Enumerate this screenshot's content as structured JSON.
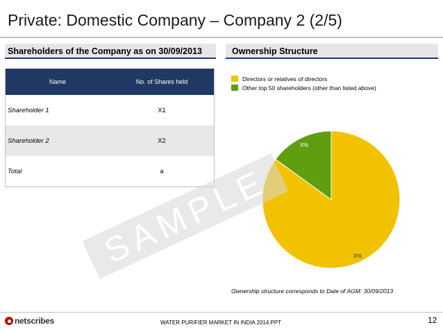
{
  "title": "Private: Domestic Company – Company 2 (2/5)",
  "left_section": {
    "header": "Shareholders of the Company as on 30/09/2013",
    "table": {
      "columns": [
        "Name",
        "No. of Shares held"
      ],
      "rows": [
        [
          "Shareholder 1",
          "X1"
        ],
        [
          "Shareholder 2",
          "X2"
        ],
        [
          "Total",
          "a"
        ]
      ]
    }
  },
  "right_section": {
    "header": "Ownership Structure",
    "legend": [
      {
        "label": "Directors or relatives of directors",
        "color": "#f2c200"
      },
      {
        "label": "Other top 50 shareholders (other than listed above)",
        "color": "#5f9e0f"
      }
    ],
    "pie_labels": [
      "X%",
      "X%"
    ],
    "note": "Ownership structure corresponds to Date of AGM:  30/09/2013"
  },
  "watermark": "SAMPLE",
  "footer": {
    "logo_text": "netscribes",
    "center_text": "WATER PURIFIER  MARKET IN INDIA 2014.PPT",
    "page_number": "12"
  }
}
